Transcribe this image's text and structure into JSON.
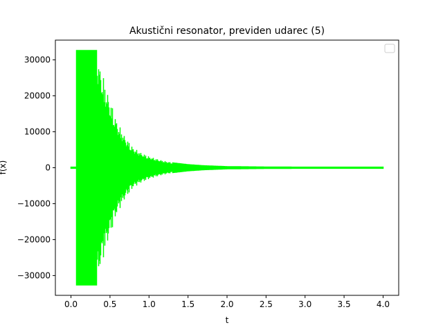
{
  "chart_data": {
    "type": "line",
    "title": "Akustični resonator, previden udarec (5)",
    "xlabel": "t",
    "ylabel": "f(x)",
    "xlim": [
      -0.2,
      4.2
    ],
    "ylim": [
      -35500,
      35500
    ],
    "xticks": [
      0.0,
      0.5,
      1.0,
      1.5,
      2.0,
      2.5,
      3.0,
      3.5,
      4.0
    ],
    "xtick_labels": [
      "0.0",
      "0.5",
      "1.0",
      "1.5",
      "2.0",
      "2.5",
      "3.0",
      "3.5",
      "4.0"
    ],
    "yticks": [
      -30000,
      -20000,
      -10000,
      0,
      10000,
      20000,
      30000
    ],
    "ytick_labels": [
      "−30000",
      "−20000",
      "−10000",
      "0",
      "10000",
      "20000",
      "30000"
    ],
    "grid": false,
    "legend": {
      "position": "top-right",
      "entries": []
    },
    "series": [
      {
        "color": "#00ff00",
        "signal_start": 0.0,
        "onset": 0.07,
        "end": 4.0,
        "baseline_amplitude": 300,
        "clip_level": 32767,
        "clip_end": 0.33,
        "envelope": [
          [
            0.07,
            32767
          ],
          [
            0.33,
            32767
          ],
          [
            0.4,
            26500
          ],
          [
            0.5,
            19000
          ],
          [
            0.6,
            12500
          ],
          [
            0.7,
            8500
          ],
          [
            0.8,
            5600
          ],
          [
            0.9,
            4200
          ],
          [
            1.0,
            3200
          ],
          [
            1.1,
            2500
          ],
          [
            1.2,
            1900
          ],
          [
            1.3,
            1500
          ],
          [
            1.5,
            1000
          ],
          [
            1.7,
            700
          ],
          [
            2.0,
            450
          ],
          [
            2.5,
            350
          ],
          [
            3.0,
            300
          ],
          [
            4.0,
            300
          ]
        ]
      }
    ]
  }
}
